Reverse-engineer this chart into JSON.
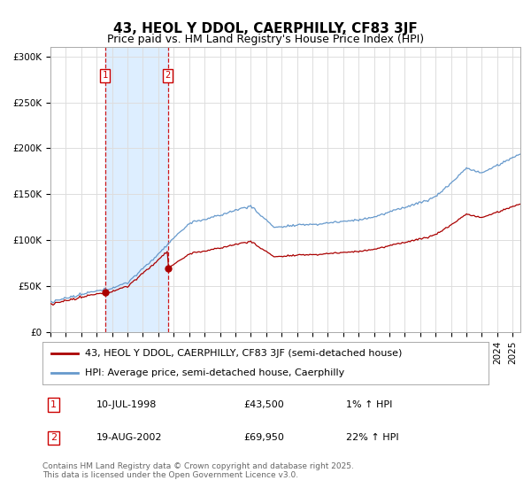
{
  "title": "43, HEOL Y DDOL, CAERPHILLY, CF83 3JF",
  "subtitle": "Price paid vs. HM Land Registry's House Price Index (HPI)",
  "ylabel_ticks": [
    "£0",
    "£50K",
    "£100K",
    "£150K",
    "£200K",
    "£250K",
    "£300K"
  ],
  "ytick_values": [
    0,
    50000,
    100000,
    150000,
    200000,
    250000,
    300000
  ],
  "ylim": [
    0,
    310000
  ],
  "xlim_start": 1995.0,
  "xlim_end": 2025.5,
  "sale1_year": 1998,
  "sale1_month": 7,
  "sale1_price": 43500,
  "sale1_label": "1",
  "sale2_year": 2002,
  "sale2_month": 8,
  "sale2_price": 69950,
  "sale2_label": "2",
  "shade_color": "#ddeeff",
  "line_color_hpi": "#6699cc",
  "line_color_price": "#aa0000",
  "marker_color": "#aa0000",
  "vline_color": "#cc0000",
  "box_label_color": "#cc0000",
  "legend_line1": "43, HEOL Y DDOL, CAERPHILLY, CF83 3JF (semi-detached house)",
  "legend_line2": "HPI: Average price, semi-detached house, Caerphilly",
  "table_row1": [
    "1",
    "10-JUL-1998",
    "£43,500",
    "1% ↑ HPI"
  ],
  "table_row2": [
    "2",
    "19-AUG-2002",
    "£69,950",
    "22% ↑ HPI"
  ],
  "footnote": "Contains HM Land Registry data © Crown copyright and database right 2025.\nThis data is licensed under the Open Government Licence v3.0.",
  "background_color": "#ffffff",
  "grid_color": "#dddddd",
  "title_fontsize": 11,
  "subtitle_fontsize": 9,
  "tick_fontsize": 7.5,
  "legend_fontsize": 8,
  "table_fontsize": 8,
  "footnote_fontsize": 6.5
}
